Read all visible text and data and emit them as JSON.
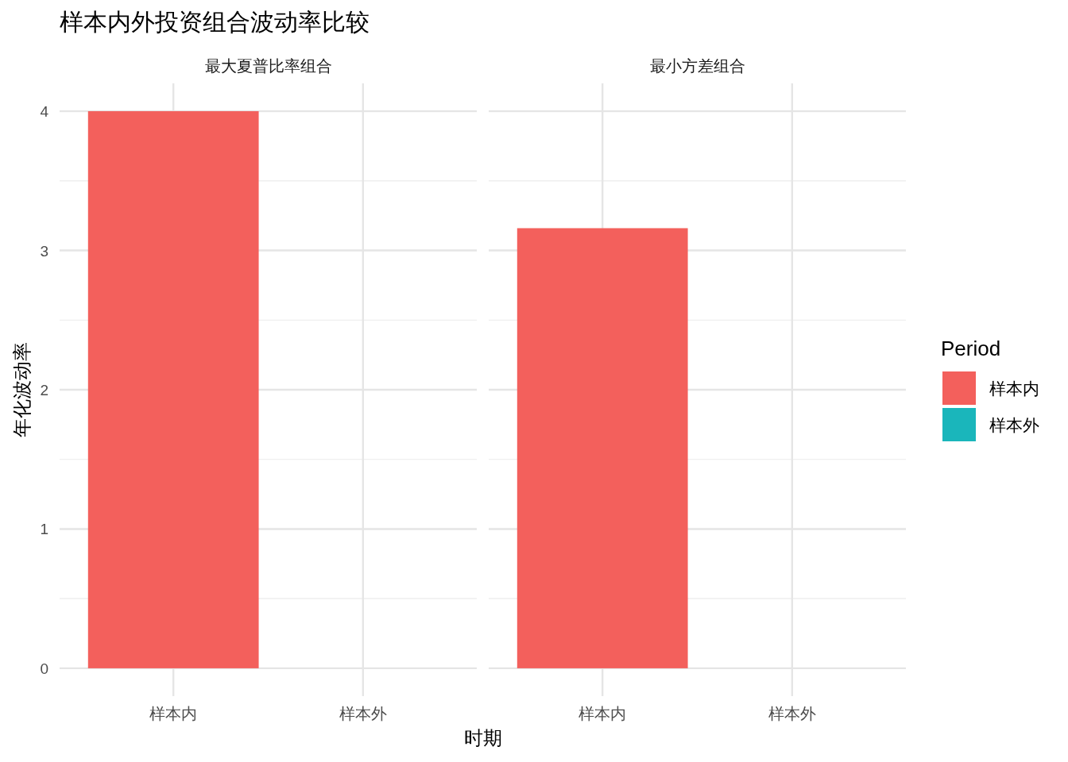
{
  "chart_data": [
    {
      "type": "bar",
      "title": "样本内外投资组合波动率比较",
      "subtitle": "最大夏普比率组合",
      "xlabel": "时期",
      "ylabel": "年化波动率",
      "legend_title": "Period",
      "legend": "right",
      "categories": [
        "样本内",
        "样本外"
      ],
      "series": [
        {
          "name": "样本内",
          "color": "#f3605c",
          "values": [
            4.0,
            null
          ]
        },
        {
          "name": "样本外",
          "color": "#1ab6bb",
          "values": [
            null,
            null
          ]
        }
      ],
      "ylim": [
        -0.2,
        4.2
      ],
      "yticks": [
        0,
        1,
        2,
        3,
        4
      ],
      "grid": true
    },
    {
      "type": "bar",
      "subtitle": "最小方差组合",
      "tick_labels": "x",
      "categories": [
        "样本内",
        "样本外"
      ],
      "series": [
        {
          "color": "#f3605c",
          "values": [
            3.16,
            null
          ]
        }
      ],
      "ylim": [
        -0.2,
        4.2
      ],
      "yticks": [
        0,
        1,
        2,
        3,
        4
      ],
      "grid": true
    }
  ]
}
